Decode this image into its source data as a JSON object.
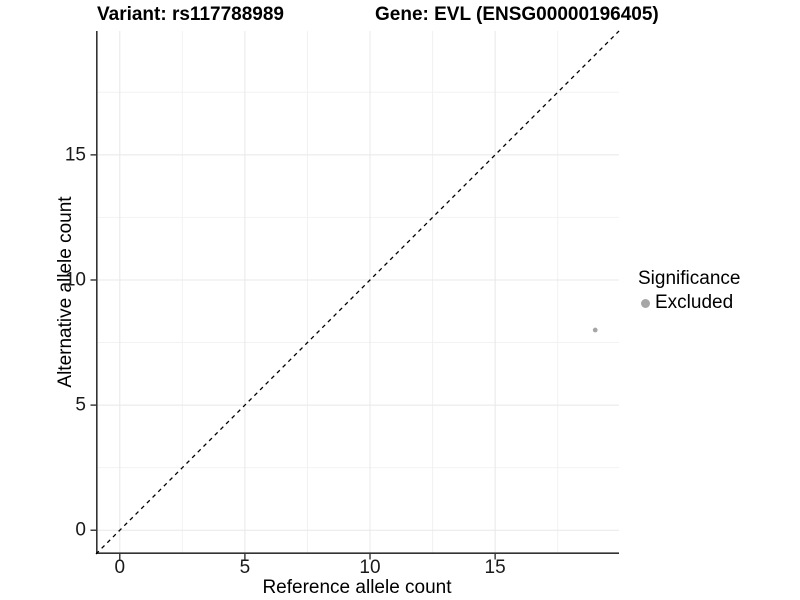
{
  "titles": {
    "variant": "Variant: rs117788989",
    "gene": "Gene: EVL (ENSG00000196405)"
  },
  "axes": {
    "x_label": "Reference allele count",
    "y_label": "Alternative allele count"
  },
  "legend": {
    "title": "Significance",
    "items": [
      {
        "label": "Excluded",
        "color": "#a6a6a6"
      }
    ]
  },
  "colors": {
    "background": "#ffffff",
    "axis_line": "#333333",
    "tick_mark": "#333333",
    "grid_major": "#e8e8e8",
    "grid_minor": "#f2f2f2",
    "point": "#a6a6a6",
    "identity_line": "#000000",
    "text": "#000000"
  },
  "chart_data": {
    "type": "scatter",
    "title": "Variant: rs117788989 | Gene: EVL (ENSG00000196405)",
    "xlabel": "Reference allele count",
    "ylabel": "Alternative allele count",
    "xlim": [
      -0.95,
      19.95
    ],
    "ylim": [
      -0.95,
      19.95
    ],
    "x_ticks": [
      0,
      5,
      10,
      15
    ],
    "y_ticks": [
      0,
      5,
      10,
      15
    ],
    "minor_breaks": [
      2.5,
      7.5,
      12.5,
      17.5
    ],
    "grid": "major+minor",
    "legend_position": "right",
    "legend_title": "Significance",
    "series": [
      {
        "name": "Excluded",
        "points": [
          {
            "x": 19,
            "y": 8
          }
        ]
      }
    ],
    "identity_line": {
      "slope": 1,
      "intercept": 0,
      "style": "dashed"
    }
  }
}
